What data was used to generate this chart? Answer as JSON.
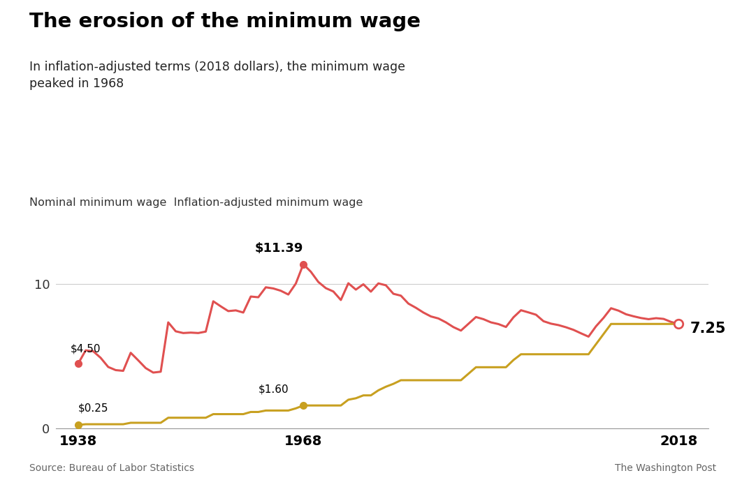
{
  "title": "The erosion of the minimum wage",
  "subtitle": "In inflation-adjusted terms (2018 dollars), the minimum wage\npeaked in 1968",
  "legend_text": "Nominal minimum wage  Inflation-adjusted minimum wage",
  "source": "Source: Bureau of Labor Statistics",
  "credit": "The Washington Post",
  "nominal_data": [
    [
      1938,
      0.25
    ],
    [
      1939,
      0.3
    ],
    [
      1940,
      0.3
    ],
    [
      1941,
      0.3
    ],
    [
      1942,
      0.3
    ],
    [
      1943,
      0.3
    ],
    [
      1944,
      0.3
    ],
    [
      1945,
      0.4
    ],
    [
      1946,
      0.4
    ],
    [
      1947,
      0.4
    ],
    [
      1948,
      0.4
    ],
    [
      1949,
      0.4
    ],
    [
      1950,
      0.75
    ],
    [
      1951,
      0.75
    ],
    [
      1952,
      0.75
    ],
    [
      1953,
      0.75
    ],
    [
      1954,
      0.75
    ],
    [
      1955,
      0.75
    ],
    [
      1956,
      1.0
    ],
    [
      1957,
      1.0
    ],
    [
      1958,
      1.0
    ],
    [
      1959,
      1.0
    ],
    [
      1960,
      1.0
    ],
    [
      1961,
      1.15
    ],
    [
      1962,
      1.15
    ],
    [
      1963,
      1.25
    ],
    [
      1964,
      1.25
    ],
    [
      1965,
      1.25
    ],
    [
      1966,
      1.25
    ],
    [
      1967,
      1.4
    ],
    [
      1968,
      1.6
    ],
    [
      1969,
      1.6
    ],
    [
      1970,
      1.6
    ],
    [
      1971,
      1.6
    ],
    [
      1972,
      1.6
    ],
    [
      1973,
      1.6
    ],
    [
      1974,
      2.0
    ],
    [
      1975,
      2.1
    ],
    [
      1976,
      2.3
    ],
    [
      1977,
      2.3
    ],
    [
      1978,
      2.65
    ],
    [
      1979,
      2.9
    ],
    [
      1980,
      3.1
    ],
    [
      1981,
      3.35
    ],
    [
      1982,
      3.35
    ],
    [
      1983,
      3.35
    ],
    [
      1984,
      3.35
    ],
    [
      1985,
      3.35
    ],
    [
      1986,
      3.35
    ],
    [
      1987,
      3.35
    ],
    [
      1988,
      3.35
    ],
    [
      1989,
      3.35
    ],
    [
      1990,
      3.8
    ],
    [
      1991,
      4.25
    ],
    [
      1992,
      4.25
    ],
    [
      1993,
      4.25
    ],
    [
      1994,
      4.25
    ],
    [
      1995,
      4.25
    ],
    [
      1996,
      4.75
    ],
    [
      1997,
      5.15
    ],
    [
      1998,
      5.15
    ],
    [
      1999,
      5.15
    ],
    [
      2000,
      5.15
    ],
    [
      2001,
      5.15
    ],
    [
      2002,
      5.15
    ],
    [
      2003,
      5.15
    ],
    [
      2004,
      5.15
    ],
    [
      2005,
      5.15
    ],
    [
      2006,
      5.15
    ],
    [
      2007,
      5.85
    ],
    [
      2008,
      6.55
    ],
    [
      2009,
      7.25
    ],
    [
      2010,
      7.25
    ],
    [
      2011,
      7.25
    ],
    [
      2012,
      7.25
    ],
    [
      2013,
      7.25
    ],
    [
      2014,
      7.25
    ],
    [
      2015,
      7.25
    ],
    [
      2016,
      7.25
    ],
    [
      2017,
      7.25
    ],
    [
      2018,
      7.25
    ]
  ],
  "real_data": [
    [
      1938,
      4.5
    ],
    [
      1939,
      5.42
    ],
    [
      1940,
      5.36
    ],
    [
      1941,
      4.9
    ],
    [
      1942,
      4.27
    ],
    [
      1943,
      4.05
    ],
    [
      1944,
      4.0
    ],
    [
      1945,
      5.25
    ],
    [
      1946,
      4.73
    ],
    [
      1947,
      4.19
    ],
    [
      1948,
      3.88
    ],
    [
      1949,
      3.94
    ],
    [
      1950,
      7.36
    ],
    [
      1951,
      6.74
    ],
    [
      1952,
      6.62
    ],
    [
      1953,
      6.65
    ],
    [
      1954,
      6.62
    ],
    [
      1955,
      6.72
    ],
    [
      1956,
      8.82
    ],
    [
      1957,
      8.47
    ],
    [
      1958,
      8.14
    ],
    [
      1959,
      8.19
    ],
    [
      1960,
      8.04
    ],
    [
      1961,
      9.15
    ],
    [
      1962,
      9.1
    ],
    [
      1963,
      9.79
    ],
    [
      1964,
      9.71
    ],
    [
      1965,
      9.55
    ],
    [
      1966,
      9.29
    ],
    [
      1967,
      10.05
    ],
    [
      1968,
      11.39
    ],
    [
      1969,
      10.87
    ],
    [
      1970,
      10.16
    ],
    [
      1971,
      9.73
    ],
    [
      1972,
      9.5
    ],
    [
      1973,
      8.91
    ],
    [
      1974,
      10.07
    ],
    [
      1975,
      9.63
    ],
    [
      1976,
      10.0
    ],
    [
      1977,
      9.49
    ],
    [
      1978,
      10.06
    ],
    [
      1979,
      9.93
    ],
    [
      1980,
      9.34
    ],
    [
      1981,
      9.21
    ],
    [
      1982,
      8.66
    ],
    [
      1983,
      8.37
    ],
    [
      1984,
      8.04
    ],
    [
      1985,
      7.77
    ],
    [
      1986,
      7.63
    ],
    [
      1987,
      7.36
    ],
    [
      1988,
      7.03
    ],
    [
      1989,
      6.79
    ],
    [
      1990,
      7.26
    ],
    [
      1991,
      7.73
    ],
    [
      1992,
      7.58
    ],
    [
      1993,
      7.36
    ],
    [
      1994,
      7.24
    ],
    [
      1995,
      7.04
    ],
    [
      1996,
      7.71
    ],
    [
      1997,
      8.2
    ],
    [
      1998,
      8.05
    ],
    [
      1999,
      7.89
    ],
    [
      2000,
      7.44
    ],
    [
      2001,
      7.27
    ],
    [
      2002,
      7.17
    ],
    [
      2003,
      7.02
    ],
    [
      2004,
      6.84
    ],
    [
      2005,
      6.6
    ],
    [
      2006,
      6.37
    ],
    [
      2007,
      7.09
    ],
    [
      2008,
      7.67
    ],
    [
      2009,
      8.34
    ],
    [
      2010,
      8.17
    ],
    [
      2011,
      7.92
    ],
    [
      2012,
      7.78
    ],
    [
      2013,
      7.66
    ],
    [
      2014,
      7.58
    ],
    [
      2015,
      7.65
    ],
    [
      2016,
      7.6
    ],
    [
      2017,
      7.39
    ],
    [
      2018,
      7.25
    ]
  ],
  "nominal_color": "#c8a020",
  "real_color": "#e05050",
  "background_color": "#ffffff",
  "xlim": [
    1935,
    2022
  ],
  "ylim": [
    0,
    13.5
  ],
  "xticks": [
    1938,
    1968,
    2018
  ],
  "yticks": [
    0,
    10
  ]
}
